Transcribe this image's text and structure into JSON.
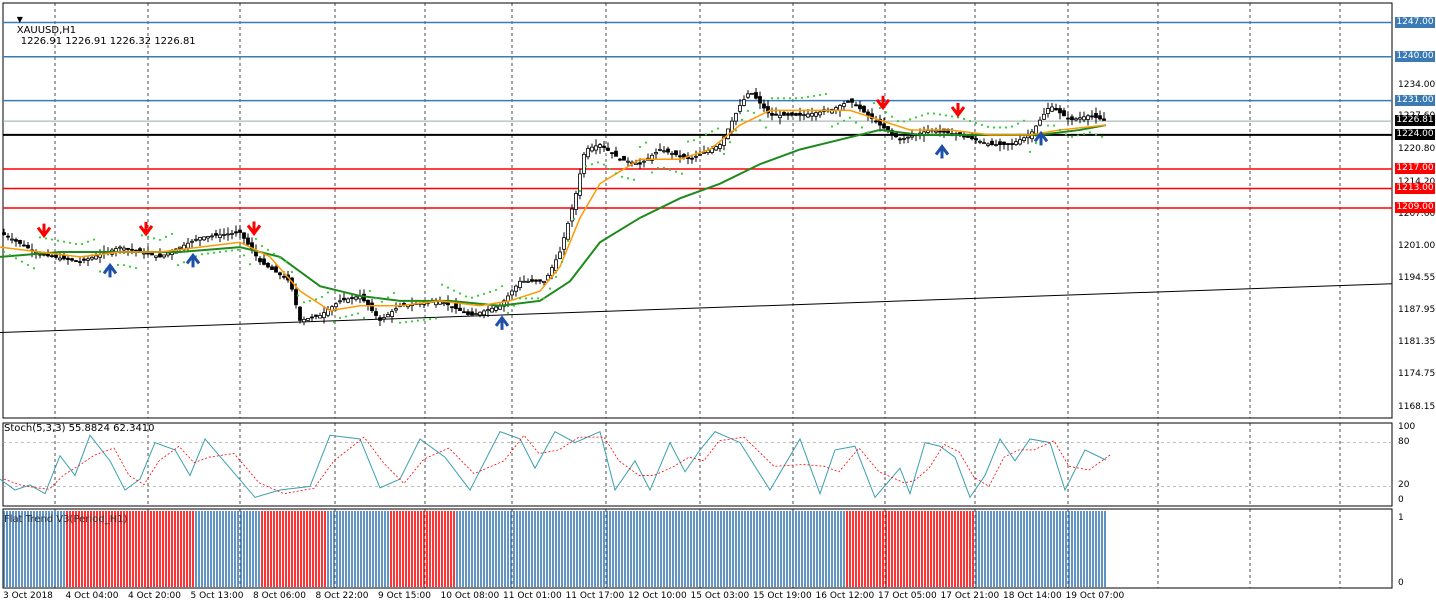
{
  "header": {
    "symbol_timeframe": "XAUUSD,H1",
    "ohlc": "1226.91 1226.91 1226.32 1226.81"
  },
  "colors": {
    "up": "#3a7ab5",
    "down": "#ff0000",
    "candle": "#000000",
    "ma_fast": "#ff9900",
    "ma_slow": "#1e8a1e",
    "sar": "#33cc33",
    "hline_blue": "#3a7ab5",
    "hline_red": "#ff0000",
    "stoch_main": "#3aa0b0",
    "stoch_signal": "#ff0000"
  },
  "price_axis": {
    "min": 1166,
    "max": 1251,
    "ticks": [
      "1247.00",
      "1240.00",
      "1234.00",
      "1227.60",
      "1220.80",
      "1214.20",
      "1207.60",
      "1201.00",
      "1194.55",
      "1187.95",
      "1181.35",
      "1174.75",
      "1168.15"
    ]
  },
  "level_tags": [
    {
      "value": 1247.0,
      "label": "1247.00",
      "color": "#3a7ab5"
    },
    {
      "value": 1240.0,
      "label": "1240.00",
      "color": "#3a7ab5"
    },
    {
      "value": 1231.0,
      "label": "1231.00",
      "color": "#3a7ab5"
    },
    {
      "value": 1226.81,
      "label": "1226.81",
      "color": "#000000"
    },
    {
      "value": 1224.0,
      "label": "1224.00",
      "color": "#000000"
    },
    {
      "value": 1217.0,
      "label": "1217.00",
      "color": "#ff0000"
    },
    {
      "value": 1213.0,
      "label": "1213.00",
      "color": "#ff0000"
    },
    {
      "value": 1209.0,
      "label": "1209.00",
      "color": "#ff0000"
    }
  ],
  "x_axis": {
    "labels": [
      "3 Oct 2018",
      "4 Oct 04:00",
      "4 Oct 20:00",
      "5 Oct 13:00",
      "8 Oct 06:00",
      "8 Oct 22:00",
      "9 Oct 15:00",
      "10 Oct 08:00",
      "11 Oct 01:00",
      "11 Oct 17:00",
      "12 Oct 10:00",
      "15 Oct 03:00",
      "15 Oct 19:00",
      "16 Oct 12:00",
      "17 Oct 05:00",
      "17 Oct 21:00",
      "18 Oct 14:00",
      "19 Oct 07:00"
    ]
  },
  "stoch": {
    "title": "Stoch(5,3,3) 55.8824 62.3410",
    "levels": [
      "100",
      "80",
      "20",
      "0"
    ]
  },
  "flat_trend": {
    "title": "Flat Trend V3(Period_H1)",
    "levels": [
      "1",
      "0"
    ]
  },
  "chart_data": {
    "type": "candlestick",
    "symbol": "XAUUSD",
    "timeframe": "H1",
    "close_path": [
      [
        0,
        1204
      ],
      [
        40,
        1199.5
      ],
      [
        80,
        1198
      ],
      [
        120,
        1201
      ],
      [
        160,
        1199
      ],
      [
        200,
        1203
      ],
      [
        240,
        1204
      ],
      [
        260,
        1198
      ],
      [
        290,
        1194
      ],
      [
        300,
        1186
      ],
      [
        320,
        1187
      ],
      [
        340,
        1190
      ],
      [
        360,
        1191
      ],
      [
        380,
        1186
      ],
      [
        400,
        1189
      ],
      [
        440,
        1190
      ],
      [
        470,
        1187
      ],
      [
        500,
        1189
      ],
      [
        520,
        1194
      ],
      [
        545,
        1194
      ],
      [
        560,
        1200
      ],
      [
        575,
        1211
      ],
      [
        585,
        1221
      ],
      [
        600,
        1222
      ],
      [
        620,
        1219
      ],
      [
        640,
        1218
      ],
      [
        660,
        1221
      ],
      [
        690,
        1219
      ],
      [
        720,
        1222
      ],
      [
        740,
        1230
      ],
      [
        750,
        1233
      ],
      [
        770,
        1228
      ],
      [
        800,
        1228
      ],
      [
        830,
        1229
      ],
      [
        850,
        1231
      ],
      [
        880,
        1226
      ],
      [
        900,
        1223
      ],
      [
        930,
        1225
      ],
      [
        960,
        1224
      ],
      [
        990,
        1222
      ],
      [
        1010,
        1222
      ],
      [
        1030,
        1224
      ],
      [
        1050,
        1230
      ],
      [
        1070,
        1227
      ],
      [
        1090,
        1228
      ],
      [
        1106,
        1226.8
      ]
    ],
    "ma_fast_path": [
      [
        0,
        1201
      ],
      [
        40,
        1200
      ],
      [
        80,
        1199
      ],
      [
        120,
        1200
      ],
      [
        160,
        1200
      ],
      [
        200,
        1201
      ],
      [
        240,
        1202
      ],
      [
        270,
        1199
      ],
      [
        300,
        1192
      ],
      [
        330,
        1188
      ],
      [
        360,
        1189
      ],
      [
        400,
        1189
      ],
      [
        440,
        1190
      ],
      [
        480,
        1189
      ],
      [
        510,
        1190
      ],
      [
        540,
        1192
      ],
      [
        560,
        1197
      ],
      [
        580,
        1207
      ],
      [
        600,
        1214
      ],
      [
        640,
        1219
      ],
      [
        680,
        1219
      ],
      [
        710,
        1221
      ],
      [
        740,
        1226
      ],
      [
        770,
        1229
      ],
      [
        810,
        1229
      ],
      [
        850,
        1229
      ],
      [
        880,
        1227
      ],
      [
        910,
        1225
      ],
      [
        950,
        1225
      ],
      [
        990,
        1224
      ],
      [
        1030,
        1224
      ],
      [
        1060,
        1225
      ],
      [
        1106,
        1226
      ]
    ],
    "ma_slow_path": [
      [
        0,
        1199
      ],
      [
        60,
        1200
      ],
      [
        120,
        1200
      ],
      [
        180,
        1200
      ],
      [
        240,
        1201
      ],
      [
        280,
        1199
      ],
      [
        320,
        1193
      ],
      [
        360,
        1191
      ],
      [
        400,
        1190
      ],
      [
        450,
        1190
      ],
      [
        500,
        1189
      ],
      [
        540,
        1190
      ],
      [
        570,
        1194
      ],
      [
        600,
        1202
      ],
      [
        640,
        1207
      ],
      [
        680,
        1211
      ],
      [
        720,
        1214
      ],
      [
        760,
        1218
      ],
      [
        800,
        1221
      ],
      [
        840,
        1223
      ],
      [
        880,
        1225
      ],
      [
        920,
        1224
      ],
      [
        960,
        1224
      ],
      [
        1000,
        1224
      ],
      [
        1040,
        1224
      ],
      [
        1080,
        1225
      ],
      [
        1106,
        1226
      ]
    ],
    "trendline": [
      [
        0,
        1183.5
      ],
      [
        1392,
        1193.5
      ]
    ],
    "arrows": [
      {
        "x": 44,
        "dir": "down"
      },
      {
        "x": 110,
        "dir": "up"
      },
      {
        "x": 146,
        "dir": "down"
      },
      {
        "x": 193,
        "dir": "up"
      },
      {
        "x": 254,
        "dir": "down"
      },
      {
        "x": 502,
        "dir": "up"
      },
      {
        "x": 883,
        "dir": "down"
      },
      {
        "x": 942,
        "dir": "up"
      },
      {
        "x": 958,
        "dir": "down"
      },
      {
        "x": 1041,
        "dir": "up"
      }
    ],
    "stoch_main": [
      [
        0,
        30
      ],
      [
        15,
        15
      ],
      [
        30,
        22
      ],
      [
        45,
        10
      ],
      [
        60,
        62
      ],
      [
        75,
        35
      ],
      [
        90,
        90
      ],
      [
        110,
        55
      ],
      [
        125,
        15
      ],
      [
        140,
        30
      ],
      [
        155,
        80
      ],
      [
        175,
        70
      ],
      [
        190,
        35
      ],
      [
        205,
        85
      ],
      [
        230,
        45
      ],
      [
        255,
        5
      ],
      [
        280,
        15
      ],
      [
        310,
        20
      ],
      [
        330,
        90
      ],
      [
        360,
        85
      ],
      [
        380,
        18
      ],
      [
        400,
        30
      ],
      [
        420,
        85
      ],
      [
        445,
        60
      ],
      [
        470,
        15
      ],
      [
        500,
        95
      ],
      [
        520,
        85
      ],
      [
        535,
        45
      ],
      [
        555,
        95
      ],
      [
        575,
        80
      ],
      [
        600,
        95
      ],
      [
        615,
        15
      ],
      [
        635,
        55
      ],
      [
        650,
        15
      ],
      [
        670,
        80
      ],
      [
        685,
        40
      ],
      [
        700,
        70
      ],
      [
        715,
        95
      ],
      [
        740,
        80
      ],
      [
        770,
        15
      ],
      [
        800,
        85
      ],
      [
        820,
        10
      ],
      [
        835,
        70
      ],
      [
        855,
        75
      ],
      [
        875,
        5
      ],
      [
        900,
        45
      ],
      [
        910,
        10
      ],
      [
        925,
        80
      ],
      [
        940,
        75
      ],
      [
        955,
        60
      ],
      [
        970,
        5
      ],
      [
        985,
        35
      ],
      [
        1000,
        85
      ],
      [
        1015,
        55
      ],
      [
        1030,
        85
      ],
      [
        1050,
        80
      ],
      [
        1065,
        15
      ],
      [
        1085,
        70
      ],
      [
        1106,
        56
      ]
    ],
    "flat_trend_colors": [
      "#3a7ab5",
      "#ff0000",
      "#ff0000",
      "#3a7ab5",
      "#ff0000",
      "#3a7ab5",
      "#ff0000",
      "#3a7ab5",
      "#3a7ab5",
      "#3a7ab5",
      "#3a7ab5",
      "#3a7ab5",
      "#3a7ab5",
      "#ff0000",
      "#ff0000",
      "#3a7ab5",
      "#3a7ab5"
    ]
  }
}
